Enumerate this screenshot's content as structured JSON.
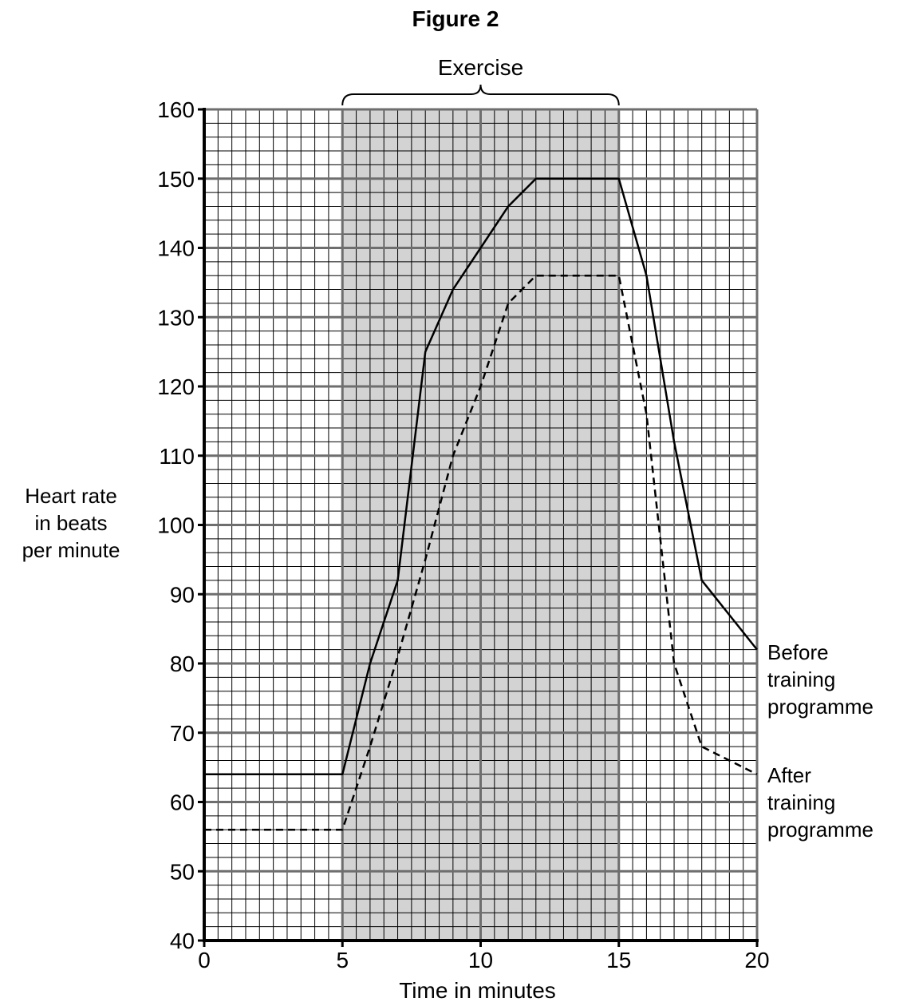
{
  "figure_title": "Figure 2",
  "chart_data": {
    "type": "line",
    "title": "Figure 2",
    "xlabel": "Time in minutes",
    "ylabel_lines": [
      "Heart rate",
      "in beats",
      "per minute"
    ],
    "xlim": [
      0,
      20
    ],
    "ylim": [
      40,
      160
    ],
    "x_ticks": [
      0,
      5,
      10,
      15,
      20
    ],
    "y_ticks": [
      40,
      50,
      60,
      70,
      80,
      90,
      100,
      110,
      120,
      130,
      140,
      150,
      160
    ],
    "grid": true,
    "shaded_region": {
      "label": "Exercise",
      "x": [
        5,
        15
      ]
    },
    "series": [
      {
        "name": "Before training programme",
        "label_lines": [
          "Before",
          "training",
          "programme"
        ],
        "style": "solid",
        "x": [
          0,
          5,
          6,
          7,
          8,
          9,
          10,
          11,
          12,
          13,
          14,
          15,
          16,
          17,
          18,
          19,
          20
        ],
        "y": [
          64,
          64,
          80,
          92,
          125,
          134,
          140,
          146,
          150,
          150,
          150,
          150,
          136,
          112,
          92,
          87,
          82
        ]
      },
      {
        "name": "After training programme",
        "label_lines": [
          "After",
          "training",
          "programme"
        ],
        "style": "dashed",
        "x": [
          0,
          5,
          6,
          7,
          8,
          9,
          10,
          11,
          12,
          13,
          14,
          15,
          16,
          17,
          18,
          19,
          20
        ],
        "y": [
          56,
          56,
          68,
          81,
          95,
          110,
          120,
          132,
          136,
          136,
          136,
          136,
          116,
          80,
          68,
          66,
          64
        ]
      }
    ],
    "colors": {
      "shade": "#d3d3d3",
      "minor_grid": "#000000",
      "major_grid": "#6e6e6e",
      "line": "#000000"
    }
  }
}
